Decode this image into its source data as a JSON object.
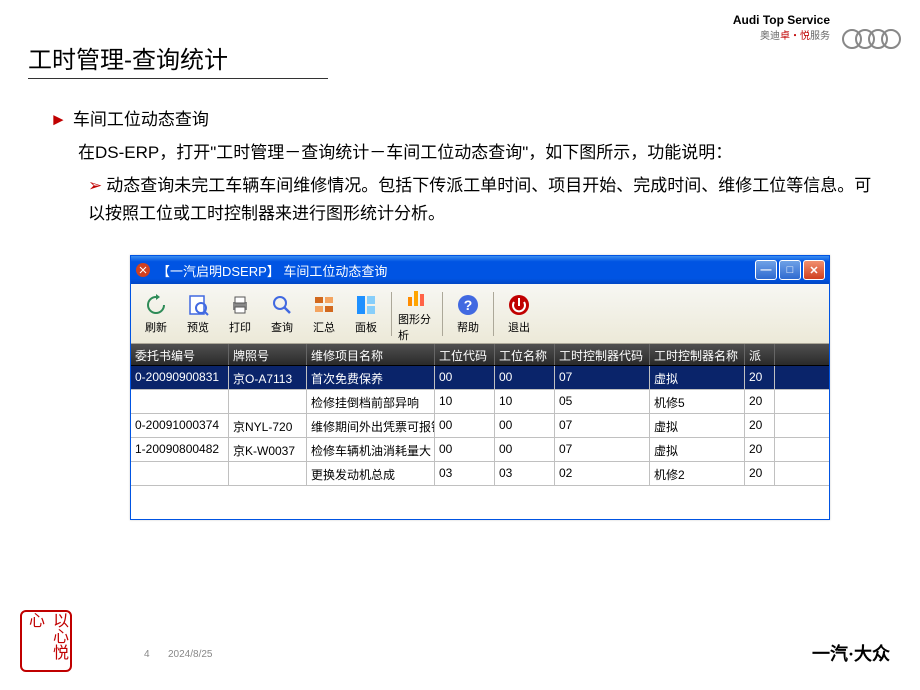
{
  "slide": {
    "title": "工时管理-查询统计",
    "bullet1": "车间工位动态查询",
    "desc": "在DS-ERP，打开\"工时管理－查询统计－车间工位动态查询\"，如下图所示，功能说明：",
    "bullet2": "动态查询未完工车辆车间维修情况。包括下传派工单时间、项目开始、完成时间、维修工位等信息。可以按照工位或工时控制器来进行图形统计分析。"
  },
  "branding": {
    "audi_top": "Audi",
    "audi_top2": "Top Service",
    "audi_sub_pre": "奥迪",
    "audi_sub_red": "卓・悦",
    "audi_sub_post": "服务",
    "stamp": "以心悦心",
    "footer_logo": "一汽·大众"
  },
  "footer": {
    "page": "4",
    "date": "2024/8/25"
  },
  "erp": {
    "title": "【一汽启明DSERP】 车间工位动态查询",
    "toolbar": [
      {
        "label": "刷新",
        "icon": "refresh",
        "color": "#2e8b57"
      },
      {
        "label": "预览",
        "icon": "preview",
        "color": "#4169e1"
      },
      {
        "label": "打印",
        "icon": "print",
        "color": "#555"
      },
      {
        "label": "查询",
        "icon": "search",
        "color": "#4169e1"
      },
      {
        "label": "汇总",
        "icon": "sum",
        "color": "#d2691e"
      },
      {
        "label": "面板",
        "icon": "panel",
        "color": "#1e90ff"
      },
      {
        "label": "图形分析",
        "sep_before": true,
        "icon": "chart",
        "color": "#ff8c00"
      },
      {
        "label": "帮助",
        "sep_before": true,
        "icon": "help",
        "color": "#4169e1"
      },
      {
        "label": "退出",
        "sep_before": true,
        "icon": "exit",
        "color": "#c00000"
      }
    ],
    "columns": [
      "委托书编号",
      "牌照号",
      "维修项目名称",
      "工位代码",
      "工位名称",
      "工时控制器代码",
      "工时控制器名称",
      "派"
    ],
    "rows": [
      {
        "sel": true,
        "c": [
          "0-20090900831",
          "京O-A7113",
          "首次免费保养",
          "00",
          "00",
          "07",
          "虚拟",
          "20"
        ]
      },
      {
        "sel": false,
        "c": [
          "",
          "",
          "检修挂倒档前部异响",
          "10",
          "10",
          "05",
          "机修5",
          "20"
        ]
      },
      {
        "sel": false,
        "c": [
          "0-20091000374",
          "京NYL-720",
          "维修期间外出凭票可报销",
          "00",
          "00",
          "07",
          "虚拟",
          "20"
        ]
      },
      {
        "sel": false,
        "c": [
          "1-20090800482",
          "京K-W0037",
          "检修车辆机油消耗量大",
          "00",
          "00",
          "07",
          "虚拟",
          "20"
        ]
      },
      {
        "sel": false,
        "c": [
          "",
          "",
          "更换发动机总成",
          "03",
          "03",
          "02",
          "机修2",
          "20"
        ]
      }
    ]
  }
}
